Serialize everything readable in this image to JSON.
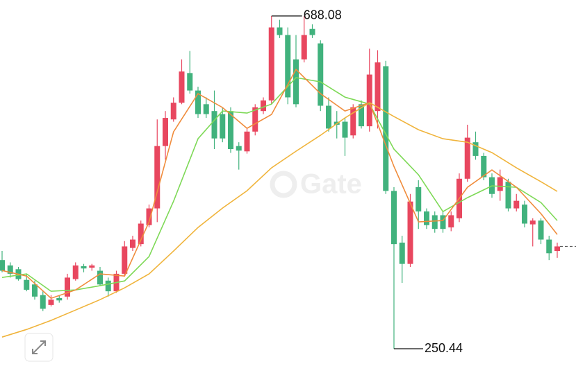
{
  "chart_data": {
    "type": "candlestick",
    "watermark": "Gate",
    "up_color": "#e8475f",
    "down_color": "#41b27d",
    "ylim": [
      218.53,
      709.05
    ],
    "open": [
      367,
      360,
      355,
      341,
      335,
      321,
      308,
      317,
      319,
      342,
      359,
      357,
      353,
      340,
      326,
      349,
      383,
      388,
      413,
      435,
      517,
      552,
      574,
      613,
      590,
      572,
      563,
      559,
      563,
      517,
      510,
      536,
      563,
      577,
      673,
      663,
      631,
      631,
      671,
      652,
      570,
      549,
      549,
      531,
      572,
      543,
      563,
      622,
      458,
      390,
      362,
      463,
      431,
      426,
      426,
      410,
      422,
      474,
      522,
      504,
      476,
      458,
      470,
      435,
      440,
      414,
      419,
      394,
      379
    ],
    "high": [
      379,
      364,
      358,
      349,
      340,
      326,
      321,
      320,
      349,
      364,
      362,
      362,
      358,
      344,
      353,
      392,
      399,
      419,
      440,
      552,
      563,
      581,
      631,
      642,
      595,
      581,
      590,
      568,
      568,
      522,
      540,
      572,
      581,
      688.08,
      683,
      673,
      663,
      688,
      677,
      656,
      581,
      563,
      554,
      572,
      577,
      645,
      643,
      629,
      463,
      399,
      454,
      472,
      435,
      431,
      431,
      431,
      481,
      545,
      536,
      508,
      481,
      486,
      474,
      454,
      445,
      422,
      422,
      399,
      390
    ],
    "low": [
      351,
      344,
      340,
      326,
      315,
      300,
      306,
      311,
      315,
      340,
      351,
      353,
      333,
      319,
      324,
      346,
      379,
      385,
      410,
      417,
      499,
      549,
      572,
      586,
      554,
      554,
      513,
      522,
      508,
      486,
      507,
      531,
      559,
      572,
      659,
      572,
      568,
      627,
      659,
      563,
      536,
      527,
      504,
      527,
      540,
      536,
      540,
      454,
      250.44,
      337,
      358,
      408,
      408,
      403,
      403,
      405,
      417,
      470,
      499,
      472,
      449,
      445,
      431,
      431,
      410,
      385,
      388,
      367,
      370
    ],
    "close": [
      353,
      349,
      342,
      328,
      319,
      303,
      315,
      314,
      344,
      360,
      356,
      360,
      335,
      326,
      349,
      385,
      394,
      415,
      435,
      517,
      554,
      574,
      615,
      590,
      559,
      559,
      527,
      527,
      513,
      511,
      536,
      568,
      577,
      673,
      663,
      581,
      572,
      663,
      663,
      570,
      540,
      545,
      528,
      568,
      543,
      611,
      627,
      458,
      388,
      362,
      444,
      431,
      413,
      408,
      408,
      426,
      474,
      528,
      504,
      476,
      454,
      476,
      435,
      445,
      415,
      419,
      394,
      376,
      385
    ],
    "series": [
      {
        "color": "#f0b43c",
        "x": [
          0,
          3,
          6,
          9,
          12,
          15,
          18,
          21,
          24,
          27,
          30,
          33,
          36,
          39,
          42,
          45,
          48,
          51,
          54,
          57,
          60,
          63,
          66,
          68
        ],
        "values": [
          265.8,
          275.8,
          287.7,
          301.3,
          315.0,
          330.5,
          348.8,
          378.9,
          409.9,
          435.4,
          458.2,
          488.3,
          510.2,
          531.2,
          554.0,
          574.0,
          555.8,
          538.5,
          526.6,
          522.0,
          508.4,
          488.3,
          470.1,
          457.3
        ]
      },
      {
        "color": "#7ed957",
        "x": [
          0,
          3,
          6,
          9,
          12,
          15,
          18,
          21,
          24,
          27,
          30,
          33,
          36,
          39,
          42,
          45,
          48,
          51,
          54,
          57,
          60,
          63,
          66,
          68
        ],
        "values": [
          344.2,
          348.8,
          326.0,
          327.8,
          333.3,
          339.6,
          371.6,
          444.5,
          526.6,
          563.1,
          560.3,
          572.2,
          606.9,
          601.4,
          581.3,
          572.2,
          512.9,
          479.2,
          430.8,
          449.1,
          464.6,
          462.8,
          442.7,
          419.0
        ]
      },
      {
        "color": "#f08c3c",
        "x": [
          0,
          3,
          6,
          9,
          12,
          15,
          18,
          21,
          24,
          27,
          30,
          33,
          36,
          39,
          42,
          45,
          48,
          51,
          54,
          57,
          60,
          63,
          66,
          68
        ],
        "values": [
          353.3,
          346.0,
          316.8,
          327.8,
          348.8,
          346.0,
          417.2,
          535.7,
          585.9,
          567.6,
          540.3,
          558.5,
          617.8,
          585.9,
          563.1,
          574.0,
          490.1,
          417.2,
          419.0,
          462.8,
          485.6,
          462.8,
          428.1,
          400.7
        ]
      }
    ]
  }
}
